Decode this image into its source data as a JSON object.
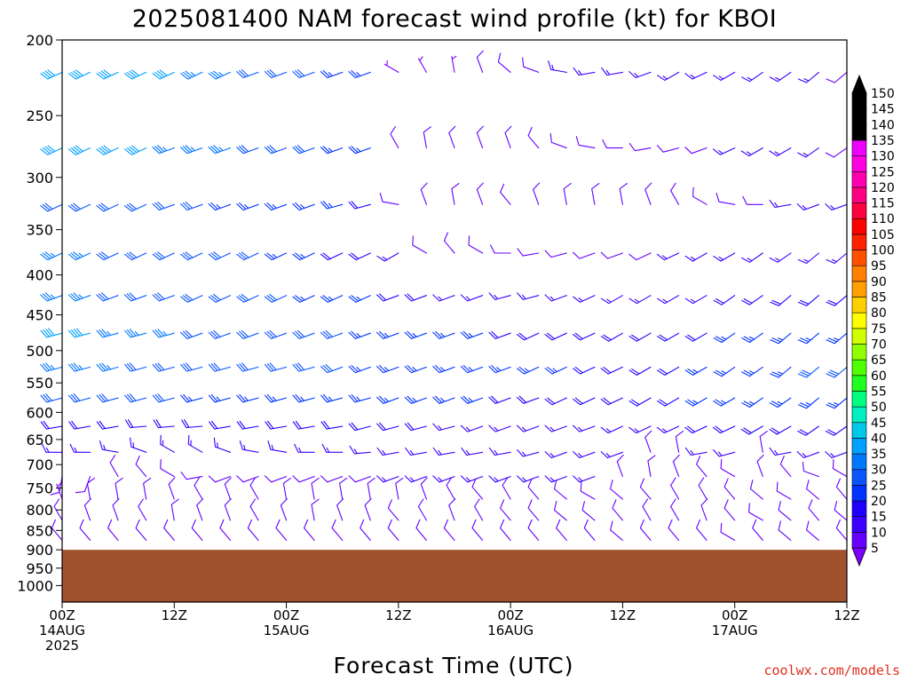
{
  "title": "2025081400 NAM forecast wind profile (kt) for KBOI",
  "credit": "coolwx.com/models",
  "colors": {
    "ground": "#a0522d",
    "frame": "#000000",
    "speed_scale": [
      "#7a00ff",
      "#6600ff",
      "#3b00ff",
      "#1f00ff",
      "#0033ff",
      "#0a55ff",
      "#0077ff",
      "#00a0ff",
      "#00c8e8",
      "#00f0c0",
      "#00ff80",
      "#20ff20",
      "#50ff00",
      "#90ff00",
      "#d0ff00",
      "#ffff00",
      "#ffd000",
      "#ffa000",
      "#ff8000",
      "#ff5000",
      "#ff2000",
      "#ff0000",
      "#ff0040",
      "#ff0080",
      "#ff00b0",
      "#ff00e0",
      "#ee00ff",
      "#000000"
    ]
  },
  "chart_data": {
    "type": "wind-barb-timeseries",
    "title": "2025081400 NAM forecast wind profile (kt) for KBOI",
    "xlabel": "Forecast Time (UTC)",
    "ylabel": "",
    "x_ticks": [
      {
        "hour": 0,
        "line1": "00Z",
        "line2": "14AUG",
        "line3": "2025"
      },
      {
        "hour": 12,
        "line1": "12Z",
        "line2": "",
        "line3": ""
      },
      {
        "hour": 24,
        "line1": "00Z",
        "line2": "15AUG",
        "line3": ""
      },
      {
        "hour": 36,
        "line1": "12Z",
        "line2": "",
        "line3": ""
      },
      {
        "hour": 48,
        "line1": "00Z",
        "line2": "16AUG",
        "line3": ""
      },
      {
        "hour": 60,
        "line1": "12Z",
        "line2": "",
        "line3": ""
      },
      {
        "hour": 72,
        "line1": "00Z",
        "line2": "17AUG",
        "line3": ""
      },
      {
        "hour": 84,
        "line1": "12Z",
        "line2": "",
        "line3": ""
      }
    ],
    "y_ticks": [
      200,
      250,
      300,
      350,
      400,
      450,
      500,
      550,
      600,
      650,
      700,
      750,
      800,
      850,
      900,
      950,
      1000
    ],
    "y_scale": "log-pressure (hPa, inverted)",
    "xlim": [
      0,
      84
    ],
    "ylim": [
      1050,
      200
    ],
    "surface_pressure_hPa": 900,
    "colorbar": {
      "levels": [
        5,
        10,
        15,
        20,
        25,
        30,
        35,
        40,
        45,
        50,
        55,
        60,
        65,
        70,
        75,
        80,
        85,
        90,
        95,
        100,
        105,
        110,
        115,
        120,
        125,
        130,
        135,
        140,
        145,
        150
      ],
      "unit": "kt"
    },
    "grid": false,
    "forecast_hours": [
      0,
      3,
      6,
      9,
      12,
      15,
      18,
      21,
      24,
      27,
      30,
      33,
      36,
      39,
      42,
      45,
      48,
      51,
      54,
      57,
      60,
      63,
      66,
      69,
      72,
      75,
      78,
      81,
      84
    ],
    "barb_levels_hPa": [
      220,
      275,
      325,
      375,
      425,
      475,
      525,
      575,
      625,
      675,
      725,
      775,
      825,
      875
    ],
    "wind_dir_deg": [
      [
        245,
        245,
        245,
        245,
        245,
        245,
        245,
        250,
        250,
        250,
        250,
        250,
        300,
        330,
        350,
        340,
        310,
        290,
        280,
        260,
        260,
        250,
        240,
        245,
        240,
        235,
        235,
        230,
        230
      ],
      [
        245,
        245,
        245,
        245,
        250,
        250,
        250,
        250,
        250,
        250,
        250,
        250,
        330,
        350,
        340,
        340,
        340,
        320,
        290,
        280,
        270,
        260,
        255,
        250,
        245,
        240,
        240,
        235,
        235
      ],
      [
        245,
        245,
        245,
        245,
        250,
        250,
        250,
        250,
        250,
        250,
        255,
        255,
        280,
        340,
        350,
        340,
        320,
        340,
        350,
        350,
        350,
        340,
        330,
        300,
        280,
        270,
        260,
        250,
        250
      ],
      [
        245,
        245,
        245,
        245,
        245,
        245,
        245,
        245,
        245,
        245,
        245,
        245,
        240,
        300,
        320,
        300,
        270,
        260,
        255,
        250,
        250,
        245,
        245,
        240,
        240,
        235,
        235,
        230,
        230
      ],
      [
        250,
        250,
        250,
        250,
        250,
        245,
        245,
        245,
        245,
        245,
        245,
        245,
        250,
        250,
        250,
        250,
        255,
        255,
        250,
        245,
        240,
        240,
        240,
        240,
        235,
        235,
        230,
        230,
        230
      ],
      [
        255,
        255,
        255,
        255,
        255,
        250,
        250,
        250,
        250,
        250,
        250,
        250,
        250,
        250,
        250,
        250,
        250,
        245,
        245,
        245,
        240,
        240,
        240,
        240,
        235,
        235,
        230,
        230,
        230
      ],
      [
        255,
        255,
        255,
        255,
        255,
        255,
        255,
        255,
        255,
        255,
        250,
        250,
        250,
        250,
        250,
        250,
        250,
        245,
        245,
        245,
        245,
        240,
        240,
        240,
        235,
        235,
        230,
        230,
        230
      ],
      [
        255,
        255,
        255,
        255,
        255,
        255,
        255,
        255,
        255,
        255,
        255,
        255,
        250,
        250,
        250,
        250,
        250,
        250,
        245,
        245,
        245,
        240,
        240,
        240,
        240,
        235,
        235,
        230,
        230
      ],
      [
        260,
        260,
        260,
        265,
        265,
        265,
        260,
        260,
        260,
        260,
        260,
        255,
        255,
        255,
        255,
        250,
        250,
        250,
        250,
        250,
        245,
        245,
        245,
        245,
        245,
        240,
        240,
        235,
        235
      ],
      [
        270,
        270,
        280,
        290,
        300,
        300,
        290,
        280,
        280,
        270,
        270,
        265,
        260,
        260,
        260,
        260,
        260,
        255,
        250,
        250,
        250,
        340,
        350,
        260,
        255,
        350,
        260,
        250,
        250
      ],
      [
        190,
        200,
        330,
        320,
        300,
        260,
        250,
        250,
        250,
        250,
        250,
        250,
        250,
        250,
        250,
        250,
        250,
        250,
        250,
        250,
        340,
        350,
        340,
        320,
        300,
        340,
        320,
        290,
        300
      ],
      [
        340,
        350,
        350,
        350,
        340,
        330,
        340,
        330,
        350,
        350,
        350,
        350,
        350,
        340,
        330,
        320,
        330,
        320,
        310,
        300,
        310,
        320,
        330,
        330,
        320,
        310,
        300,
        310,
        320
      ],
      [
        330,
        340,
        340,
        330,
        350,
        340,
        340,
        330,
        340,
        350,
        340,
        340,
        320,
        330,
        340,
        330,
        320,
        320,
        310,
        310,
        320,
        330,
        330,
        340,
        320,
        300,
        310,
        320,
        310
      ],
      [
        320,
        320,
        320,
        320,
        320,
        320,
        320,
        320,
        320,
        320,
        320,
        320,
        320,
        320,
        320,
        320,
        320,
        320,
        320,
        320,
        310,
        320,
        320,
        320,
        300,
        320,
        310,
        310,
        320
      ]
    ],
    "wind_speed_kt": [
      [
        40,
        40,
        40,
        40,
        40,
        35,
        35,
        30,
        30,
        30,
        25,
        25,
        5,
        5,
        5,
        10,
        10,
        10,
        15,
        15,
        15,
        15,
        15,
        15,
        15,
        15,
        15,
        15,
        10
      ],
      [
        40,
        40,
        40,
        40,
        35,
        35,
        35,
        30,
        30,
        30,
        25,
        25,
        10,
        10,
        10,
        10,
        10,
        10,
        10,
        10,
        10,
        10,
        10,
        10,
        15,
        15,
        15,
        15,
        10
      ],
      [
        30,
        30,
        30,
        30,
        30,
        30,
        25,
        25,
        25,
        25,
        25,
        20,
        10,
        10,
        10,
        10,
        10,
        10,
        10,
        10,
        10,
        10,
        10,
        10,
        10,
        10,
        15,
        15,
        15
      ],
      [
        35,
        35,
        30,
        30,
        30,
        30,
        30,
        30,
        25,
        25,
        20,
        20,
        15,
        10,
        10,
        10,
        10,
        10,
        10,
        10,
        10,
        10,
        15,
        15,
        15,
        15,
        15,
        15,
        15
      ],
      [
        35,
        35,
        30,
        30,
        30,
        30,
        30,
        30,
        30,
        25,
        25,
        25,
        20,
        20,
        15,
        15,
        15,
        15,
        15,
        15,
        15,
        15,
        15,
        15,
        20,
        20,
        20,
        20,
        20
      ],
      [
        40,
        40,
        35,
        35,
        35,
        30,
        30,
        30,
        30,
        30,
        30,
        25,
        25,
        25,
        25,
        25,
        20,
        20,
        20,
        20,
        20,
        20,
        20,
        20,
        25,
        25,
        25,
        25,
        25
      ],
      [
        35,
        35,
        35,
        30,
        30,
        30,
        30,
        30,
        30,
        30,
        30,
        25,
        25,
        25,
        25,
        25,
        25,
        25,
        25,
        20,
        20,
        20,
        20,
        25,
        25,
        25,
        25,
        30,
        30
      ],
      [
        30,
        30,
        30,
        30,
        30,
        25,
        25,
        25,
        25,
        25,
        25,
        25,
        25,
        25,
        25,
        25,
        20,
        20,
        20,
        20,
        20,
        20,
        20,
        25,
        25,
        25,
        25,
        25,
        25
      ],
      [
        20,
        20,
        20,
        20,
        20,
        20,
        20,
        20,
        20,
        20,
        20,
        20,
        20,
        20,
        15,
        15,
        15,
        15,
        15,
        15,
        15,
        15,
        15,
        20,
        20,
        20,
        20,
        20,
        20
      ],
      [
        15,
        15,
        15,
        15,
        15,
        15,
        15,
        15,
        15,
        15,
        15,
        15,
        15,
        15,
        15,
        15,
        15,
        15,
        15,
        15,
        15,
        10,
        10,
        15,
        15,
        10,
        15,
        15,
        15
      ],
      [
        10,
        10,
        10,
        10,
        10,
        10,
        10,
        10,
        10,
        10,
        10,
        10,
        15,
        15,
        15,
        15,
        15,
        15,
        15,
        15,
        10,
        10,
        10,
        10,
        10,
        10,
        10,
        10,
        10
      ],
      [
        5,
        10,
        10,
        10,
        10,
        10,
        10,
        10,
        10,
        10,
        10,
        10,
        10,
        10,
        10,
        10,
        10,
        10,
        10,
        10,
        10,
        10,
        10,
        10,
        10,
        10,
        10,
        10,
        10
      ],
      [
        10,
        10,
        10,
        10,
        10,
        10,
        10,
        10,
        10,
        10,
        10,
        10,
        10,
        10,
        10,
        10,
        10,
        10,
        10,
        10,
        10,
        10,
        10,
        10,
        10,
        10,
        10,
        10,
        10
      ],
      [
        10,
        10,
        10,
        10,
        10,
        10,
        10,
        10,
        10,
        10,
        10,
        10,
        10,
        10,
        10,
        10,
        10,
        10,
        10,
        10,
        10,
        10,
        10,
        10,
        10,
        10,
        10,
        10,
        10
      ]
    ]
  }
}
